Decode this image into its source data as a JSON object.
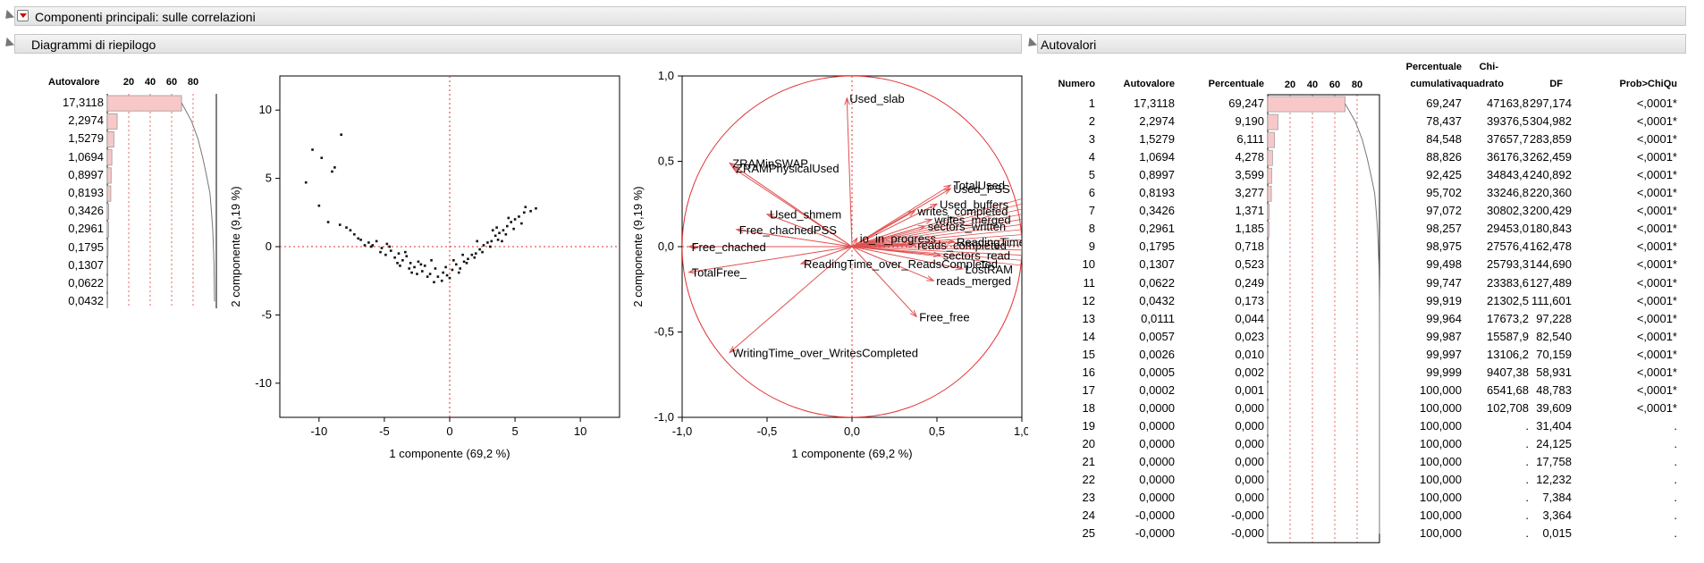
{
  "main_title": "Componenti principali: sulle correlazioni",
  "summary": {
    "title": "Diagrammi di riepilogo",
    "eigen_header": "Autovalore",
    "bar_ticks": [
      "20",
      "40",
      "60",
      "80"
    ],
    "eigenvalues": [
      "17,3118",
      "2,2974",
      "1,5279",
      "1,0694",
      "0,8997",
      "0,8193",
      "0,3426",
      "0,2961",
      "0,1795",
      "0,1307",
      "0,0622",
      "0,0432"
    ]
  },
  "autovalori": {
    "title": "Autovalori",
    "headers": {
      "numero": "Numero",
      "autovalore": "Autovalore",
      "percentuale": "Percentuale",
      "bar_ticks": [
        "20",
        "40",
        "60",
        "80"
      ],
      "cum_line1": "Percentuale",
      "cum_line2": "cumulativa",
      "chi_line1": "Chi-",
      "chi_line2": "quadrato",
      "df": "DF",
      "prob": "Prob>ChiQu"
    },
    "rows": [
      {
        "n": "1",
        "eig": "17,3118",
        "pct": "69,247",
        "pv": 69.247,
        "cum": "69,247",
        "chi": "47163,8",
        "df": "297,174",
        "p": "<,0001*"
      },
      {
        "n": "2",
        "eig": "2,2974",
        "pct": "9,190",
        "pv": 9.19,
        "cum": "78,437",
        "chi": "39376,5",
        "df": "304,982",
        "p": "<,0001*"
      },
      {
        "n": "3",
        "eig": "1,5279",
        "pct": "6,111",
        "pv": 6.111,
        "cum": "84,548",
        "chi": "37657,7",
        "df": "283,859",
        "p": "<,0001*"
      },
      {
        "n": "4",
        "eig": "1,0694",
        "pct": "4,278",
        "pv": 4.278,
        "cum": "88,826",
        "chi": "36176,3",
        "df": "262,459",
        "p": "<,0001*"
      },
      {
        "n": "5",
        "eig": "0,8997",
        "pct": "3,599",
        "pv": 3.599,
        "cum": "92,425",
        "chi": "34843,4",
        "df": "240,892",
        "p": "<,0001*"
      },
      {
        "n": "6",
        "eig": "0,8193",
        "pct": "3,277",
        "pv": 3.277,
        "cum": "95,702",
        "chi": "33246,8",
        "df": "220,360",
        "p": "<,0001*"
      },
      {
        "n": "7",
        "eig": "0,3426",
        "pct": "1,371",
        "pv": 1.371,
        "cum": "97,072",
        "chi": "30802,3",
        "df": "200,429",
        "p": "<,0001*"
      },
      {
        "n": "8",
        "eig": "0,2961",
        "pct": "1,185",
        "pv": 1.185,
        "cum": "98,257",
        "chi": "29453,0",
        "df": "180,843",
        "p": "<,0001*"
      },
      {
        "n": "9",
        "eig": "0,1795",
        "pct": "0,718",
        "pv": 0.718,
        "cum": "98,975",
        "chi": "27576,4",
        "df": "162,478",
        "p": "<,0001*"
      },
      {
        "n": "10",
        "eig": "0,1307",
        "pct": "0,523",
        "pv": 0.523,
        "cum": "99,498",
        "chi": "25793,3",
        "df": "144,690",
        "p": "<,0001*"
      },
      {
        "n": "11",
        "eig": "0,0622",
        "pct": "0,249",
        "pv": 0.249,
        "cum": "99,747",
        "chi": "23383,6",
        "df": "127,489",
        "p": "<,0001*"
      },
      {
        "n": "12",
        "eig": "0,0432",
        "pct": "0,173",
        "pv": 0.173,
        "cum": "99,919",
        "chi": "21302,5",
        "df": "111,601",
        "p": "<,0001*"
      },
      {
        "n": "13",
        "eig": "0,0111",
        "pct": "0,044",
        "pv": 0.044,
        "cum": "99,964",
        "chi": "17673,2",
        "df": "97,228",
        "p": "<,0001*"
      },
      {
        "n": "14",
        "eig": "0,0057",
        "pct": "0,023",
        "pv": 0.023,
        "cum": "99,987",
        "chi": "15587,9",
        "df": "82,540",
        "p": "<,0001*"
      },
      {
        "n": "15",
        "eig": "0,0026",
        "pct": "0,010",
        "pv": 0.01,
        "cum": "99,997",
        "chi": "13106,2",
        "df": "70,159",
        "p": "<,0001*"
      },
      {
        "n": "16",
        "eig": "0,0005",
        "pct": "0,002",
        "pv": 0.002,
        "cum": "99,999",
        "chi": "9407,38",
        "df": "58,931",
        "p": "<,0001*"
      },
      {
        "n": "17",
        "eig": "0,0002",
        "pct": "0,001",
        "pv": 0.001,
        "cum": "100,000",
        "chi": "6541,68",
        "df": "48,783",
        "p": "<,0001*"
      },
      {
        "n": "18",
        "eig": "0,0000",
        "pct": "0,000",
        "pv": 0,
        "cum": "100,000",
        "chi": "102,708",
        "df": "39,609",
        "p": "<,0001*"
      },
      {
        "n": "19",
        "eig": "0,0000",
        "pct": "0,000",
        "pv": 0,
        "cum": "100,000",
        "chi": ".",
        "df": "31,404",
        "p": "."
      },
      {
        "n": "20",
        "eig": "0,0000",
        "pct": "0,000",
        "pv": 0,
        "cum": "100,000",
        "chi": ".",
        "df": "24,125",
        "p": "."
      },
      {
        "n": "21",
        "eig": "0,0000",
        "pct": "0,000",
        "pv": 0,
        "cum": "100,000",
        "chi": ".",
        "df": "17,758",
        "p": "."
      },
      {
        "n": "22",
        "eig": "0,0000",
        "pct": "0,000",
        "pv": 0,
        "cum": "100,000",
        "chi": ".",
        "df": "12,232",
        "p": "."
      },
      {
        "n": "23",
        "eig": "0,0000",
        "pct": "0,000",
        "pv": 0,
        "cum": "100,000",
        "chi": ".",
        "df": "7,384",
        "p": "."
      },
      {
        "n": "24",
        "eig": "-0,0000",
        "pct": "-0,000",
        "pv": 0,
        "cum": "100,000",
        "chi": ".",
        "df": "3,364",
        "p": "."
      },
      {
        "n": "25",
        "eig": "-0,0000",
        "pct": "-0,000",
        "pv": 0,
        "cum": "100,000",
        "chi": ".",
        "df": "0,015",
        "p": "."
      }
    ]
  },
  "chart_data": [
    {
      "type": "scatter",
      "xlabel": "1 componente  (69,2 %)",
      "ylabel": "2 componente  (9,19 %)",
      "xlim": [
        -13,
        13
      ],
      "ylim": [
        -12.5,
        12.5
      ],
      "xticks": [
        "-10",
        "-5",
        "0",
        "5",
        "10"
      ],
      "yticks": [
        "10",
        "5",
        "0",
        "-5",
        "-10"
      ],
      "points": [
        [
          -10.5,
          7.1
        ],
        [
          -9.8,
          6.5
        ],
        [
          -8.3,
          8.2
        ],
        [
          -9,
          5.5
        ],
        [
          -8.8,
          5.8
        ],
        [
          -11,
          4.7
        ],
        [
          -10,
          3
        ],
        [
          -9.3,
          1.8
        ],
        [
          -8.4,
          1.6
        ],
        [
          -7.6,
          1.2
        ],
        [
          -7.9,
          1.4
        ],
        [
          -7.3,
          0.9
        ],
        [
          -6.8,
          0.5
        ],
        [
          -6.2,
          0.3
        ],
        [
          -5.9,
          0.1
        ],
        [
          -5.6,
          0.4
        ],
        [
          -5.2,
          -0.1
        ],
        [
          -4.8,
          0.2
        ],
        [
          -4.5,
          -0.3
        ],
        [
          -4.9,
          -0.6
        ],
        [
          -4.2,
          -0.8
        ],
        [
          -3.9,
          -0.5
        ],
        [
          -3.6,
          -1.0
        ],
        [
          -3.3,
          -0.7
        ],
        [
          -3.0,
          -1.2
        ],
        [
          -2.7,
          -1.5
        ],
        [
          -2.4,
          -1.1
        ],
        [
          -2.1,
          -1.8
        ],
        [
          -1.9,
          -1.4
        ],
        [
          -1.5,
          -2.0
        ],
        [
          -1.2,
          -2.6
        ],
        [
          -0.9,
          -2.2
        ],
        [
          -0.5,
          -1.9
        ],
        [
          -0.2,
          -2.1
        ],
        [
          0.2,
          -1.7
        ],
        [
          0.5,
          -1.3
        ],
        [
          0.8,
          -1.6
        ],
        [
          1.1,
          -1.1
        ],
        [
          1.4,
          -0.9
        ],
        [
          1.7,
          -0.6
        ],
        [
          2.0,
          -0.5
        ],
        [
          2.3,
          -0.2
        ],
        [
          2.6,
          0.1
        ],
        [
          2.9,
          0.3
        ],
        [
          3.2,
          0.4
        ],
        [
          3.5,
          0.8
        ],
        [
          3.8,
          1.0
        ],
        [
          4.1,
          1.2
        ],
        [
          4.4,
          1.5
        ],
        [
          4.7,
          1.8
        ],
        [
          5.0,
          2.0
        ],
        [
          5.3,
          2.2
        ],
        [
          5.7,
          2.5
        ],
        [
          6.2,
          2.6
        ],
        [
          6.6,
          2.8
        ],
        [
          5.5,
          1.7
        ],
        [
          4.9,
          1.3
        ],
        [
          4.3,
          0.9
        ],
        [
          3.7,
          0.5
        ],
        [
          3.1,
          0.0
        ],
        [
          2.5,
          -0.4
        ],
        [
          1.9,
          -0.8
        ],
        [
          1.3,
          -1.2
        ],
        [
          0.7,
          -1.9
        ],
        [
          0.0,
          -2.3
        ],
        [
          -0.6,
          -2.5
        ],
        [
          -1.1,
          -1.6
        ],
        [
          -1.7,
          -2.2
        ],
        [
          -2.2,
          -1.3
        ],
        [
          -2.9,
          -1.9
        ],
        [
          -3.4,
          -0.4
        ],
        [
          -4.0,
          -1.2
        ],
        [
          -4.6,
          0.0
        ],
        [
          -5.3,
          -0.4
        ],
        [
          -6.0,
          0.0
        ],
        [
          -6.5,
          0.1
        ],
        [
          -7.0,
          0.6
        ],
        [
          3.3,
          1.2
        ],
        [
          4.5,
          2.1
        ],
        [
          5.8,
          2.9
        ],
        [
          2.1,
          0.4
        ],
        [
          1.0,
          -0.6
        ],
        [
          0.3,
          -1.0
        ],
        [
          -0.3,
          -1.5
        ],
        [
          -1.4,
          -1.0
        ],
        [
          -2.5,
          -2.0
        ],
        [
          -3.1,
          -1.6
        ],
        [
          -3.8,
          -1.4
        ],
        [
          4.0,
          0.4
        ],
        [
          3.6,
          1.4
        ]
      ]
    },
    {
      "type": "scatter",
      "xlabel": "1 componente  (69,2 %)",
      "ylabel": "2 componente  (9,19 %)",
      "xlim": [
        -1.0,
        1.0
      ],
      "ylim": [
        -1.0,
        1.0
      ],
      "xticks": [
        "-1,0",
        "-0,5",
        "0,0",
        "0,5",
        "1,0"
      ],
      "yticks": [
        "1,0",
        "0,5",
        "0,0",
        "-0,5",
        "-1,0"
      ],
      "loadings": [
        {
          "label": "Used_slab",
          "x": -0.03,
          "y": 0.87
        },
        {
          "label": "ZRAMinSWAP",
          "x": -0.72,
          "y": 0.49
        },
        {
          "label": "ZRAMPhysicalUsed",
          "x": -0.7,
          "y": 0.46
        },
        {
          "label": "Used_shmem",
          "x": -0.5,
          "y": 0.19
        },
        {
          "label": "Free_chachedPSS",
          "x": -0.68,
          "y": 0.1
        },
        {
          "label": "Free_chached",
          "x": -0.96,
          "y": 0.0
        },
        {
          "label": "TotalFree_",
          "x": -0.96,
          "y": -0.15
        },
        {
          "label": "io_in_progress",
          "x": 0.03,
          "y": 0.05
        },
        {
          "label": "TotalUsed",
          "x": 0.58,
          "y": 0.36
        },
        {
          "label": "Used_PSS",
          "x": 0.58,
          "y": 0.34
        },
        {
          "label": "Used_buffers",
          "x": 0.5,
          "y": 0.25
        },
        {
          "label": "writes_completed",
          "x": 0.37,
          "y": 0.21
        },
        {
          "label": "writes_merged",
          "x": 0.47,
          "y": 0.16
        },
        {
          "label": "sectors_written",
          "x": 0.43,
          "y": 0.12
        },
        {
          "label": "reads_completed",
          "x": 0.37,
          "y": 0.01
        },
        {
          "label": "ReadingTime",
          "x": 0.6,
          "y": 0.03
        },
        {
          "label": "sectors_read",
          "x": 0.52,
          "y": -0.05
        },
        {
          "label": "LostRAM",
          "x": 0.65,
          "y": -0.13
        },
        {
          "label": "ReadingTime_over_ReadsCompleted",
          "x": -0.3,
          "y": -0.1
        },
        {
          "label": "reads_merged",
          "x": 0.48,
          "y": -0.2
        },
        {
          "label": "Free_free",
          "x": 0.38,
          "y": -0.41
        },
        {
          "label": "WritingTime_over_WritesCompleted",
          "x": -0.72,
          "y": -0.62
        }
      ]
    }
  ]
}
